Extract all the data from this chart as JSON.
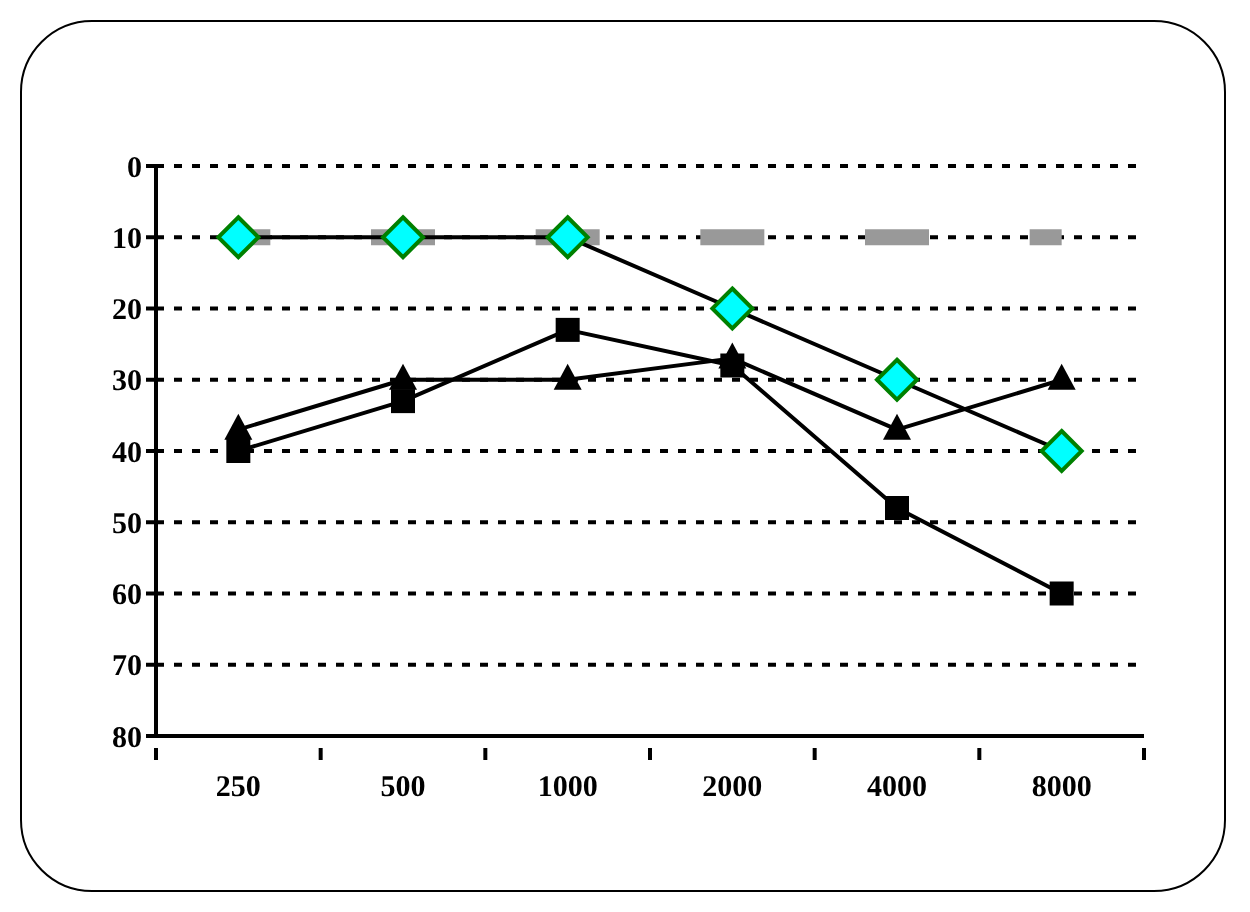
{
  "chart_data": {
    "type": "line",
    "categories": [
      "250",
      "500",
      "1000",
      "2000",
      "4000",
      "8000"
    ],
    "series": [
      {
        "color": "#999999",
        "marker": "none",
        "line_style": "dashed",
        "values": [
          10,
          10,
          10,
          10,
          10,
          10
        ]
      },
      {
        "color": "#00ffff",
        "marker": "diamond",
        "values": [
          10,
          10,
          10,
          20,
          30,
          40
        ]
      },
      {
        "color": "#000000",
        "marker": "triangle",
        "values": [
          37,
          30,
          30,
          27,
          37,
          30
        ]
      },
      {
        "color": "#000000",
        "marker": "square",
        "values": [
          40,
          33,
          23,
          28,
          48,
          60
        ]
      }
    ],
    "ylim": [
      80,
      0
    ],
    "yticks": [
      0,
      10,
      20,
      30,
      40,
      50,
      60,
      70,
      80
    ],
    "grid": "y",
    "legend": false
  }
}
